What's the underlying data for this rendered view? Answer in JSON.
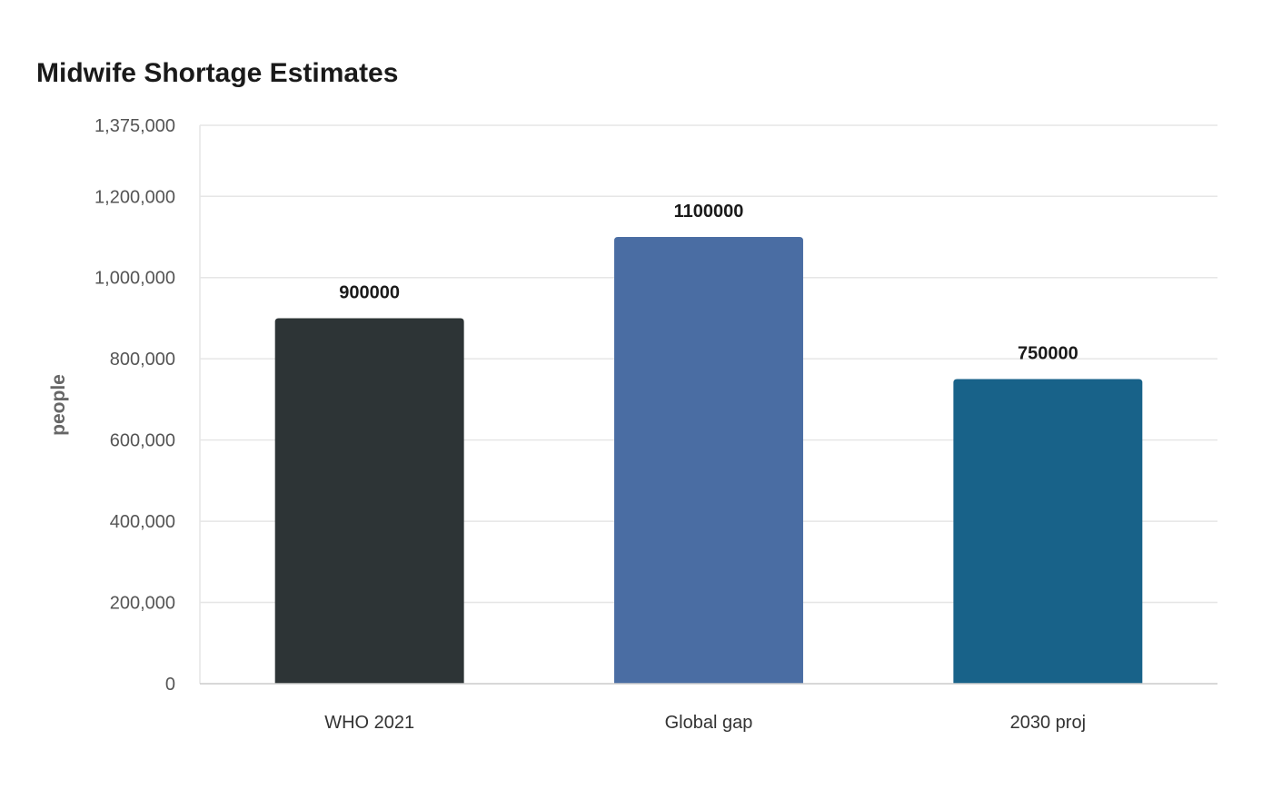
{
  "chart_data": {
    "type": "bar",
    "title": "Midwife Shortage Estimates",
    "xlabel": "",
    "ylabel": "people",
    "categories": [
      "WHO 2021",
      "Global gap",
      "2030 proj"
    ],
    "values": [
      900000,
      1100000,
      750000
    ],
    "value_labels": [
      "900000",
      "1100000",
      "750000"
    ],
    "colors": [
      "#2d3436",
      "#4a6da3",
      "#186289"
    ],
    "ylim": [
      0,
      1375000
    ],
    "yticks": [
      0,
      200000,
      400000,
      600000,
      800000,
      1000000,
      1200000,
      1375000
    ],
    "ytick_labels": [
      "0",
      "200,000",
      "400,000",
      "600,000",
      "800,000",
      "1,000,000",
      "1,200,000",
      "1,375,000"
    ],
    "grid": true,
    "legend": "none"
  }
}
